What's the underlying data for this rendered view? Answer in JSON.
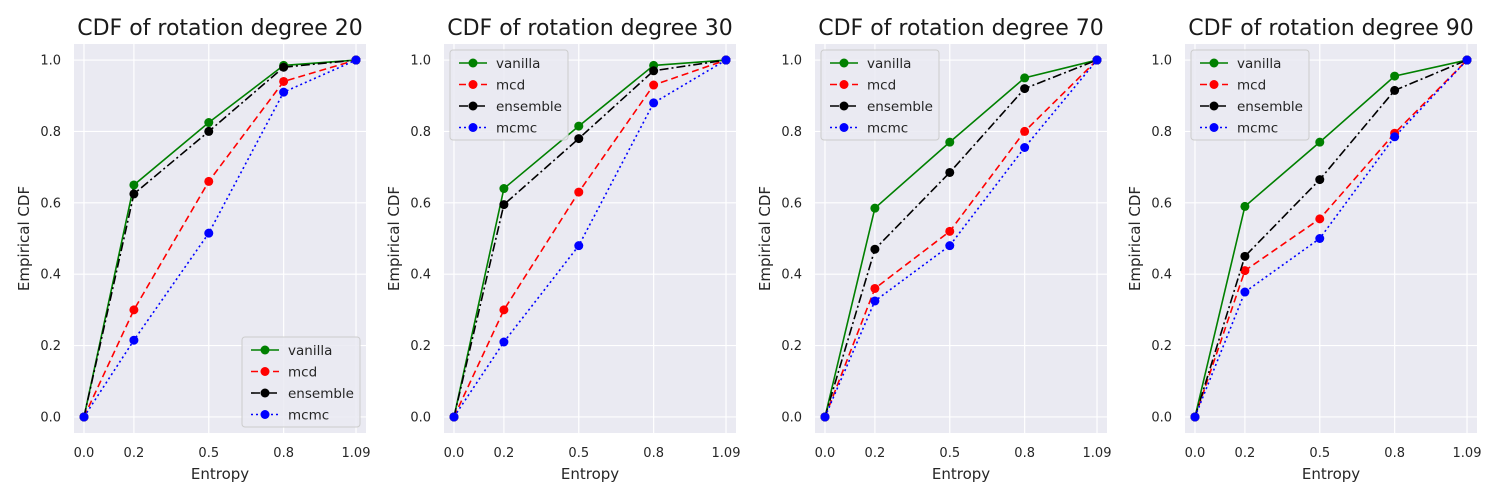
{
  "chart_data": [
    {
      "type": "line",
      "title": "CDF of rotation degree 20",
      "xlabel": "Entropy",
      "ylabel": "Empirical CDF",
      "x": [
        0.0,
        0.2,
        0.5,
        0.8,
        1.09
      ],
      "x_tick_labels": [
        "0.0",
        "0.2",
        "0.5",
        "0.8",
        "1.09"
      ],
      "y_ticks": [
        0.0,
        0.2,
        0.4,
        0.6,
        0.8,
        1.0
      ],
      "y_tick_labels": [
        "0.0",
        "0.2",
        "0.4",
        "0.6",
        "0.8",
        "1.0"
      ],
      "xlim": [
        -0.04,
        1.13
      ],
      "ylim": [
        -0.045,
        1.045
      ],
      "grid": true,
      "legend": "lower-right",
      "series": [
        {
          "name": "vanilla",
          "color": "#008000",
          "style": "solid",
          "values": [
            0.0,
            0.65,
            0.825,
            0.985,
            1.0
          ]
        },
        {
          "name": "mcd",
          "color": "#ff0000",
          "style": "dashed",
          "values": [
            0.0,
            0.3,
            0.66,
            0.94,
            1.0
          ]
        },
        {
          "name": "ensemble",
          "color": "#000000",
          "style": "dashdot",
          "values": [
            0.0,
            0.625,
            0.8,
            0.98,
            1.0
          ]
        },
        {
          "name": "mcmc",
          "color": "#0000ff",
          "style": "dotted",
          "values": [
            0.0,
            0.215,
            0.515,
            0.91,
            1.0
          ]
        }
      ]
    },
    {
      "type": "line",
      "title": "CDF of rotation degree 30",
      "xlabel": "Entropy",
      "ylabel": "Empirical CDF",
      "x": [
        0.0,
        0.2,
        0.5,
        0.8,
        1.09
      ],
      "x_tick_labels": [
        "0.0",
        "0.2",
        "0.5",
        "0.8",
        "1.09"
      ],
      "y_ticks": [
        0.0,
        0.2,
        0.4,
        0.6,
        0.8,
        1.0
      ],
      "y_tick_labels": [
        "0.0",
        "0.2",
        "0.4",
        "0.6",
        "0.8",
        "1.0"
      ],
      "xlim": [
        -0.04,
        1.13
      ],
      "ylim": [
        -0.045,
        1.045
      ],
      "grid": true,
      "legend": "upper-left",
      "series": [
        {
          "name": "vanilla",
          "color": "#008000",
          "style": "solid",
          "values": [
            0.0,
            0.64,
            0.815,
            0.985,
            1.0
          ]
        },
        {
          "name": "mcd",
          "color": "#ff0000",
          "style": "dashed",
          "values": [
            0.0,
            0.3,
            0.63,
            0.93,
            1.0
          ]
        },
        {
          "name": "ensemble",
          "color": "#000000",
          "style": "dashdot",
          "values": [
            0.0,
            0.595,
            0.78,
            0.97,
            1.0
          ]
        },
        {
          "name": "mcmc",
          "color": "#0000ff",
          "style": "dotted",
          "values": [
            0.0,
            0.21,
            0.48,
            0.88,
            1.0
          ]
        }
      ]
    },
    {
      "type": "line",
      "title": "CDF of rotation degree 70",
      "xlabel": "Entropy",
      "ylabel": "Empirical CDF",
      "x": [
        0.0,
        0.2,
        0.5,
        0.8,
        1.09
      ],
      "x_tick_labels": [
        "0.0",
        "0.2",
        "0.5",
        "0.8",
        "1.09"
      ],
      "y_ticks": [
        0.0,
        0.2,
        0.4,
        0.6,
        0.8,
        1.0
      ],
      "y_tick_labels": [
        "0.0",
        "0.2",
        "0.4",
        "0.6",
        "0.8",
        "1.0"
      ],
      "xlim": [
        -0.04,
        1.13
      ],
      "ylim": [
        -0.045,
        1.045
      ],
      "grid": true,
      "legend": "upper-left",
      "series": [
        {
          "name": "vanilla",
          "color": "#008000",
          "style": "solid",
          "values": [
            0.0,
            0.585,
            0.77,
            0.95,
            1.0
          ]
        },
        {
          "name": "mcd",
          "color": "#ff0000",
          "style": "dashed",
          "values": [
            0.0,
            0.36,
            0.52,
            0.8,
            1.0
          ]
        },
        {
          "name": "ensemble",
          "color": "#000000",
          "style": "dashdot",
          "values": [
            0.0,
            0.47,
            0.685,
            0.92,
            1.0
          ]
        },
        {
          "name": "mcmc",
          "color": "#0000ff",
          "style": "dotted",
          "values": [
            0.0,
            0.325,
            0.48,
            0.755,
            1.0
          ]
        }
      ]
    },
    {
      "type": "line",
      "title": "CDF of rotation degree 90",
      "xlabel": "Entropy",
      "ylabel": "Empirical CDF",
      "x": [
        0.0,
        0.2,
        0.5,
        0.8,
        1.09
      ],
      "x_tick_labels": [
        "0.0",
        "0.2",
        "0.5",
        "0.8",
        "1.09"
      ],
      "y_ticks": [
        0.0,
        0.2,
        0.4,
        0.6,
        0.8,
        1.0
      ],
      "y_tick_labels": [
        "0.0",
        "0.2",
        "0.4",
        "0.6",
        "0.8",
        "1.0"
      ],
      "xlim": [
        -0.04,
        1.13
      ],
      "ylim": [
        -0.045,
        1.045
      ],
      "grid": true,
      "legend": "upper-left",
      "series": [
        {
          "name": "vanilla",
          "color": "#008000",
          "style": "solid",
          "values": [
            0.0,
            0.59,
            0.77,
            0.955,
            1.0
          ]
        },
        {
          "name": "mcd",
          "color": "#ff0000",
          "style": "dashed",
          "values": [
            0.0,
            0.41,
            0.555,
            0.795,
            1.0
          ]
        },
        {
          "name": "ensemble",
          "color": "#000000",
          "style": "dashdot",
          "values": [
            0.0,
            0.45,
            0.665,
            0.915,
            1.0
          ]
        },
        {
          "name": "mcmc",
          "color": "#0000ff",
          "style": "dotted",
          "values": [
            0.0,
            0.35,
            0.5,
            0.785,
            1.0
          ]
        }
      ]
    }
  ]
}
